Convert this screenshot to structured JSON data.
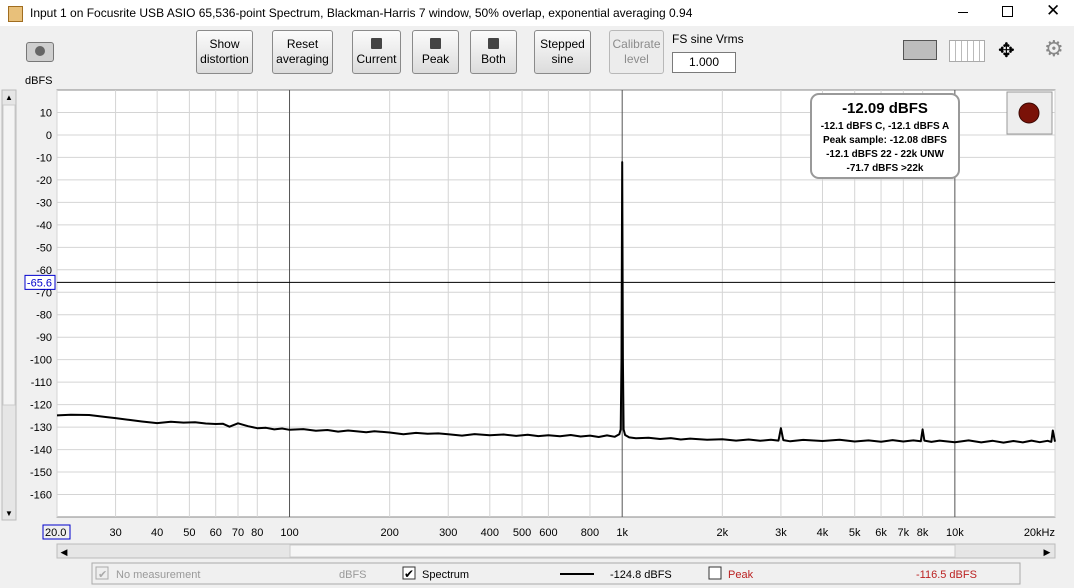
{
  "window": {
    "title": "Input 1 on Focusrite USB ASIO 65,536-point Spectrum, Blackman-Harris 7 window, 50% overlap, exponential averaging 0.94"
  },
  "toolbar": {
    "buttons": [
      [
        "Show",
        "distortion"
      ],
      [
        "Reset",
        "averaging"
      ],
      [
        "Current"
      ],
      [
        "Peak"
      ],
      [
        "Both"
      ],
      [
        "Stepped",
        "sine"
      ],
      [
        "Calibrate",
        "level"
      ]
    ],
    "fs_label": "FS sine Vrms",
    "fs_value": "1.000"
  },
  "readout": {
    "main": "-12.09 dBFS",
    "lines": [
      "-12.1 dBFS C, -12.1 dBFS A",
      "Peak sample: -12.08 dBFS",
      "-12.1 dBFS 22 - 22k UNW",
      "-71.7 dBFS >22k"
    ]
  },
  "legend": {
    "measurement": "No measurement",
    "unit": "dBFS",
    "spectrum": "Spectrum",
    "spectrum_value": "-124.8 dBFS",
    "peak": "Peak",
    "peak_value": "-116.5 dBFS"
  },
  "chart_data": {
    "type": "line",
    "y_label": "dBFS",
    "log_x": true,
    "grid": true,
    "cursor": -65.6,
    "xlim": [
      20,
      20000
    ],
    "ylim": [
      -170,
      20
    ],
    "xticks": [
      {
        "value": 20,
        "label": "20.0"
      },
      30,
      40,
      50,
      60,
      70,
      80,
      100,
      200,
      300,
      400,
      500,
      600,
      800,
      {
        "value": 1000,
        "label": "1k"
      },
      {
        "value": 2000,
        "label": "2k"
      },
      {
        "value": 3000,
        "label": "3k"
      },
      {
        "value": 4000,
        "label": "4k"
      },
      {
        "value": 5000,
        "label": "5k"
      },
      {
        "value": 6000,
        "label": "6k"
      },
      {
        "value": 7000,
        "label": "7k"
      },
      {
        "value": 8000,
        "label": "8k"
      },
      {
        "value": 10000,
        "label": "10k"
      },
      {
        "value": 20000,
        "label": "20kHz"
      }
    ],
    "yticks": [
      10,
      0,
      -10,
      -20,
      -30,
      -40,
      -50,
      -60,
      -70,
      -80,
      -90,
      -100,
      -110,
      -120,
      -130,
      -140,
      -150,
      -160
    ],
    "series": [
      {
        "name": "Spectrum",
        "color": "#000000",
        "x": [
          20,
          22,
          25,
          28,
          30,
          33,
          36,
          40,
          44,
          48,
          52,
          56,
          60,
          63,
          66,
          70,
          75,
          80,
          85,
          90,
          95,
          100,
          110,
          120,
          130,
          140,
          150,
          160,
          170,
          180,
          200,
          220,
          240,
          260,
          280,
          300,
          330,
          360,
          400,
          440,
          480,
          520,
          560,
          600,
          650,
          700,
          750,
          800,
          850,
          900,
          950,
          980,
          990,
          995,
          1000,
          1005,
          1010,
          1020,
          1050,
          1100,
          1200,
          1300,
          1400,
          1500,
          1600,
          1800,
          2000,
          2200,
          2400,
          2600,
          2800,
          2950,
          3000,
          3050,
          3200,
          3500,
          4000,
          4500,
          5000,
          5500,
          6000,
          6500,
          7000,
          7500,
          7900,
          8000,
          8100,
          8500,
          9000,
          10000,
          11000,
          12000,
          13000,
          14000,
          15000,
          16000,
          17000,
          18000,
          19000,
          19500,
          19700,
          20000
        ],
        "values": [
          -124.8,
          -124.5,
          -124.6,
          -125.5,
          -126,
          -126.8,
          -127.5,
          -128.2,
          -127.6,
          -128,
          -127.8,
          -128.4,
          -128.6,
          -128.5,
          -129.8,
          -128.3,
          -129.6,
          -130.5,
          -130.3,
          -131.0,
          -130.6,
          -131.2,
          -130.9,
          -131.6,
          -131.3,
          -132.0,
          -131.5,
          -131.9,
          -132.3,
          -131.8,
          -132.4,
          -133.2,
          -132.6,
          -133.0,
          -132.8,
          -133.2,
          -133.8,
          -133.1,
          -133.6,
          -133.3,
          -133.9,
          -133.4,
          -134.0,
          -133.6,
          -134.1,
          -133.5,
          -134.2,
          -133.8,
          -134.4,
          -133.7,
          -134.3,
          -133.2,
          -131,
          -100,
          -12.1,
          -100,
          -131,
          -133.5,
          -134.6,
          -135.0,
          -134.7,
          -135.3,
          -134.9,
          -135.5,
          -135.1,
          -135.6,
          -135.4,
          -136.0,
          -135.5,
          -136.1,
          -135.6,
          -136.0,
          -130.5,
          -135.8,
          -136.3,
          -135.7,
          -136.2,
          -135.6,
          -136.4,
          -135.9,
          -136.5,
          -135.8,
          -136.4,
          -135.9,
          -136.3,
          -131,
          -136.0,
          -136.6,
          -136.0,
          -136.7,
          -135.9,
          -136.8,
          -136.1,
          -136.9,
          -136.2,
          -136.8,
          -136.0,
          -136.7,
          -136.1,
          -136.6,
          -131.5,
          -136.5
        ]
      }
    ]
  }
}
